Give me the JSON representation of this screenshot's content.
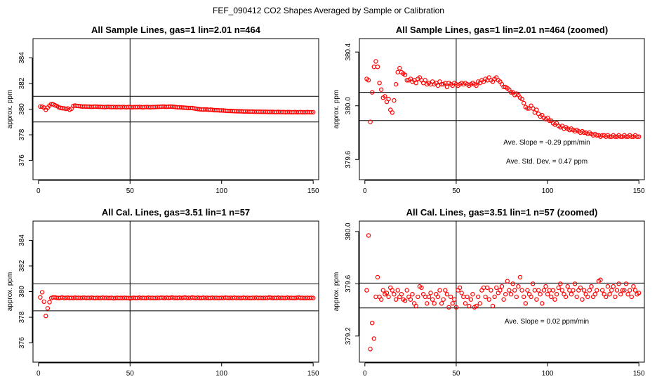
{
  "suptitle": "FEF_090412  CO2 Shapes Averaged by Sample or Calibration",
  "chart_data": [
    {
      "type": "scatter",
      "title": "All Sample Lines, gas=1 lin=2.01 n=464",
      "xlabel": "",
      "ylabel": "approx. ppm",
      "xlim": [
        -3,
        153
      ],
      "ylim": [
        374.5,
        385.5
      ],
      "xticks": [
        0,
        50,
        100,
        150
      ],
      "yticks": [
        376,
        378,
        380,
        382,
        384
      ],
      "vline": 50,
      "hlines": [
        379.0,
        381.0
      ],
      "annotations": [],
      "x": [
        1,
        2,
        3,
        4,
        5,
        6,
        7,
        8,
        9,
        10,
        11,
        12,
        13,
        14,
        15,
        16,
        17,
        18,
        19,
        20,
        21,
        22,
        23,
        24,
        25,
        26,
        27,
        28,
        29,
        30,
        31,
        32,
        33,
        34,
        35,
        36,
        37,
        38,
        39,
        40,
        41,
        42,
        43,
        44,
        45,
        46,
        47,
        48,
        49,
        50,
        51,
        52,
        53,
        54,
        55,
        56,
        57,
        58,
        59,
        60,
        61,
        62,
        63,
        64,
        65,
        66,
        67,
        68,
        69,
        70,
        71,
        72,
        73,
        74,
        75,
        76,
        77,
        78,
        79,
        80,
        81,
        82,
        83,
        84,
        85,
        86,
        87,
        88,
        89,
        90,
        91,
        92,
        93,
        94,
        95,
        96,
        97,
        98,
        99,
        100,
        101,
        102,
        103,
        104,
        105,
        106,
        107,
        108,
        109,
        110,
        111,
        112,
        113,
        114,
        115,
        116,
        117,
        118,
        119,
        120,
        121,
        122,
        123,
        124,
        125,
        126,
        127,
        128,
        129,
        130,
        131,
        132,
        133,
        134,
        135,
        136,
        137,
        138,
        139,
        140,
        141,
        142,
        143,
        144,
        145,
        146,
        147,
        148,
        149,
        150
      ],
      "y": [
        380.2,
        380.19,
        380.12,
        379.95,
        380.12,
        380.28,
        380.4,
        380.38,
        380.3,
        380.25,
        380.15,
        380.1,
        380.07,
        380.06,
        380.02,
        380.05,
        379.95,
        380.03,
        380.25,
        380.28,
        380.25,
        380.24,
        380.22,
        380.2,
        380.21,
        380.2,
        380.2,
        380.19,
        380.18,
        380.19,
        380.2,
        380.19,
        380.18,
        380.18,
        380.17,
        380.16,
        380.17,
        380.18,
        380.17,
        380.16,
        380.17,
        380.16,
        380.16,
        380.17,
        380.15,
        380.17,
        380.16,
        380.15,
        380.17,
        380.16,
        380.15,
        380.16,
        380.16,
        380.16,
        380.17,
        380.16,
        380.15,
        380.16,
        380.17,
        380.16,
        380.15,
        380.16,
        380.16,
        380.17,
        380.18,
        380.18,
        380.19,
        380.2,
        380.19,
        380.18,
        380.19,
        380.2,
        380.19,
        380.18,
        380.16,
        380.14,
        380.14,
        380.13,
        380.12,
        380.11,
        380.1,
        380.09,
        380.09,
        380.08,
        380.06,
        380.04,
        380.01,
        379.99,
        379.98,
        379.97,
        379.98,
        379.97,
        379.95,
        379.96,
        379.94,
        379.92,
        379.92,
        379.91,
        379.9,
        379.9,
        379.89,
        379.88,
        379.87,
        379.86,
        379.86,
        379.85,
        379.84,
        379.84,
        379.83,
        379.83,
        379.83,
        379.82,
        379.82,
        379.82,
        379.81,
        379.81,
        379.81,
        379.8,
        379.8,
        379.8,
        379.8,
        379.79,
        379.79,
        379.79,
        379.78,
        379.78,
        379.78,
        379.78,
        379.77,
        379.77,
        379.78,
        379.77,
        379.77,
        379.77,
        379.76,
        379.77,
        379.77,
        379.76,
        379.76,
        379.77,
        379.76,
        379.76,
        379.77,
        379.76,
        379.76,
        379.76,
        379.77,
        379.76,
        379.76,
        379.76
      ]
    },
    {
      "type": "scatter",
      "title": "All Sample Lines, gas=1 lin=2.01 n=464 (zoomed)",
      "xlabel": "",
      "ylabel": "approx. ppm",
      "xlim": [
        -3,
        153
      ],
      "ylim": [
        379.45,
        380.5
      ],
      "xticks": [
        0,
        50,
        100,
        150
      ],
      "yticks": [
        379.6,
        380.0,
        380.4
      ],
      "ytick_labels": [
        "379.6",
        "380.0",
        "380.4"
      ],
      "vline": 50,
      "hlines": [
        380.1,
        379.89
      ],
      "annotations": [
        "Ave. Slope =  -0.29  ppm/min",
        "Ave. Std. Dev. =  0.47  ppm"
      ],
      "x": [
        1,
        2,
        3,
        4,
        5,
        6,
        7,
        8,
        9,
        10,
        11,
        12,
        13,
        14,
        15,
        16,
        17,
        18,
        19,
        20,
        21,
        22,
        23,
        24,
        25,
        26,
        27,
        28,
        29,
        30,
        31,
        32,
        33,
        34,
        35,
        36,
        37,
        38,
        39,
        40,
        41,
        42,
        43,
        44,
        45,
        46,
        47,
        48,
        49,
        50,
        51,
        52,
        53,
        54,
        55,
        56,
        57,
        58,
        59,
        60,
        61,
        62,
        63,
        64,
        65,
        66,
        67,
        68,
        69,
        70,
        71,
        72,
        73,
        74,
        75,
        76,
        77,
        78,
        79,
        80,
        81,
        82,
        83,
        84,
        85,
        86,
        87,
        88,
        89,
        90,
        91,
        92,
        93,
        94,
        95,
        96,
        97,
        98,
        99,
        100,
        101,
        102,
        103,
        104,
        105,
        106,
        107,
        108,
        109,
        110,
        111,
        112,
        113,
        114,
        115,
        116,
        117,
        118,
        119,
        120,
        121,
        122,
        123,
        124,
        125,
        126,
        127,
        128,
        129,
        130,
        131,
        132,
        133,
        134,
        135,
        136,
        137,
        138,
        139,
        140,
        141,
        142,
        143,
        144,
        145,
        146,
        147,
        148,
        149,
        150
      ],
      "y": [
        380.2,
        380.19,
        379.88,
        380.1,
        380.29,
        380.33,
        380.29,
        380.17,
        380.12,
        380.06,
        380.07,
        380.03,
        380.05,
        379.97,
        379.95,
        380.04,
        380.16,
        380.25,
        380.28,
        380.25,
        380.24,
        380.23,
        380.19,
        380.19,
        380.2,
        380.18,
        380.19,
        380.17,
        380.2,
        380.21,
        380.19,
        380.17,
        380.19,
        380.16,
        380.17,
        380.16,
        380.18,
        380.16,
        380.17,
        380.15,
        380.18,
        380.16,
        380.16,
        380.17,
        380.14,
        380.17,
        380.16,
        380.15,
        380.17,
        380.16,
        380.15,
        380.16,
        380.17,
        380.16,
        380.17,
        380.16,
        380.15,
        380.16,
        380.17,
        380.16,
        380.15,
        380.18,
        380.17,
        380.19,
        380.18,
        380.2,
        380.19,
        380.21,
        380.19,
        380.18,
        380.2,
        380.21,
        380.19,
        380.18,
        380.16,
        380.14,
        380.14,
        380.13,
        380.12,
        380.1,
        380.1,
        380.08,
        380.09,
        380.08,
        380.06,
        380.05,
        380.02,
        379.99,
        379.98,
        379.98,
        380.0,
        379.98,
        379.95,
        379.97,
        379.94,
        379.92,
        379.93,
        379.91,
        379.9,
        379.91,
        379.89,
        379.89,
        379.87,
        379.86,
        379.87,
        379.85,
        379.84,
        379.85,
        379.83,
        379.84,
        379.83,
        379.82,
        379.83,
        379.82,
        379.81,
        379.82,
        379.81,
        379.8,
        379.81,
        379.8,
        379.8,
        379.79,
        379.8,
        379.79,
        379.78,
        379.79,
        379.78,
        379.78,
        379.77,
        379.78,
        379.78,
        379.77,
        379.78,
        379.77,
        379.77,
        379.78,
        379.77,
        379.77,
        379.78,
        379.77,
        379.77,
        379.78,
        379.77,
        379.77,
        379.78,
        379.77,
        379.77,
        379.78,
        379.77,
        379.77
      ]
    },
    {
      "type": "scatter",
      "title": "All Cal. Lines, gas=3.51 lin=1 n=57",
      "xlabel": "",
      "ylabel": "approx. ppm",
      "xlim": [
        -3,
        153
      ],
      "ylim": [
        374.5,
        385.5
      ],
      "xticks": [
        0,
        50,
        100,
        150
      ],
      "yticks": [
        376,
        378,
        380,
        382,
        384
      ],
      "vline": 50,
      "hlines": [
        380.6,
        378.5
      ],
      "annotations": [],
      "x": [
        1,
        2,
        3,
        4,
        5,
        6,
        7,
        8,
        9,
        10,
        11,
        12,
        13,
        14,
        15,
        16,
        17,
        18,
        19,
        20,
        21,
        22,
        23,
        24,
        25,
        26,
        27,
        28,
        29,
        30,
        31,
        32,
        33,
        34,
        35,
        36,
        37,
        38,
        39,
        40,
        41,
        42,
        43,
        44,
        45,
        46,
        47,
        48,
        49,
        50,
        51,
        52,
        53,
        54,
        55,
        56,
        57,
        58,
        59,
        60,
        61,
        62,
        63,
        64,
        65,
        66,
        67,
        68,
        69,
        70,
        71,
        72,
        73,
        74,
        75,
        76,
        77,
        78,
        79,
        80,
        81,
        82,
        83,
        84,
        85,
        86,
        87,
        88,
        89,
        90,
        91,
        92,
        93,
        94,
        95,
        96,
        97,
        98,
        99,
        100,
        101,
        102,
        103,
        104,
        105,
        106,
        107,
        108,
        109,
        110,
        111,
        112,
        113,
        114,
        115,
        116,
        117,
        118,
        119,
        120,
        121,
        122,
        123,
        124,
        125,
        126,
        127,
        128,
        129,
        130,
        131,
        132,
        133,
        134,
        135,
        136,
        137,
        138,
        139,
        140,
        141,
        142,
        143,
        144,
        145,
        146,
        147,
        148,
        149,
        150
      ],
      "y": [
        379.55,
        379.95,
        379.22,
        378.1,
        378.7,
        379.18,
        379.5,
        379.55,
        379.55,
        379.52,
        379.5,
        379.52,
        379.55,
        379.5,
        379.52,
        379.53,
        379.5,
        379.52,
        379.5,
        379.53,
        379.51,
        379.52,
        379.5,
        379.52,
        379.53,
        379.5,
        379.52,
        379.5,
        379.53,
        379.51,
        379.5,
        379.52,
        379.5,
        379.5,
        379.53,
        379.5,
        379.52,
        379.5,
        379.5,
        379.52,
        379.48,
        379.5,
        379.52,
        379.5,
        379.51,
        379.5,
        379.52,
        379.5,
        379.5,
        379.47,
        379.5,
        379.52,
        379.5,
        379.5,
        379.53,
        379.5,
        379.52,
        379.5,
        379.5,
        379.53,
        379.5,
        379.52,
        379.5,
        379.5,
        379.52,
        379.5,
        379.53,
        379.52,
        379.5,
        379.53,
        379.5,
        379.52,
        379.55,
        379.5,
        379.52,
        379.5,
        379.53,
        379.5,
        379.52,
        379.55,
        379.5,
        379.52,
        379.5,
        379.55,
        379.52,
        379.5,
        379.53,
        379.5,
        379.5,
        379.53,
        379.5,
        379.52,
        379.5,
        379.5,
        379.53,
        379.5,
        379.52,
        379.5,
        379.5,
        379.52,
        379.5,
        379.53,
        379.52,
        379.5,
        379.52,
        379.5,
        379.53,
        379.5,
        379.52,
        379.5,
        379.5,
        379.53,
        379.5,
        379.52,
        379.5,
        379.5,
        379.52,
        379.5,
        379.53,
        379.5,
        379.52,
        379.5,
        379.5,
        379.52,
        379.5,
        379.55,
        379.52,
        379.5,
        379.52,
        379.5,
        379.53,
        379.5,
        379.52,
        379.5,
        379.5,
        379.53,
        379.5,
        379.52,
        379.5,
        379.5,
        379.52,
        379.55,
        379.5,
        379.52,
        379.5,
        379.5,
        379.52,
        379.5,
        379.52,
        379.5
      ]
    },
    {
      "type": "scatter",
      "title": "All Cal. Lines, gas=3.51 lin=1 n=57 (zoomed)",
      "xlabel": "",
      "ylabel": "approx. ppm",
      "xlim": [
        -3,
        153
      ],
      "ylim": [
        379.0,
        380.08
      ],
      "xticks": [
        0,
        50,
        100,
        150
      ],
      "yticks": [
        379.2,
        379.6,
        380.0
      ],
      "ytick_labels": [
        "379.2",
        "379.6",
        "380.0"
      ],
      "vline": 50,
      "hlines": [
        379.605,
        379.415
      ],
      "annotations": [
        "Ave. Slope =  0.02  ppm/min"
      ],
      "x": [
        1,
        2,
        3,
        4,
        5,
        6,
        7,
        8,
        9,
        10,
        11,
        12,
        13,
        14,
        15,
        16,
        17,
        18,
        19,
        20,
        21,
        22,
        23,
        24,
        25,
        26,
        27,
        28,
        29,
        30,
        31,
        32,
        33,
        34,
        35,
        36,
        37,
        38,
        39,
        40,
        41,
        42,
        43,
        44,
        45,
        46,
        47,
        48,
        49,
        50,
        51,
        52,
        53,
        54,
        55,
        56,
        57,
        58,
        59,
        60,
        61,
        62,
        63,
        64,
        65,
        66,
        67,
        68,
        69,
        70,
        71,
        72,
        73,
        74,
        75,
        76,
        77,
        78,
        79,
        80,
        81,
        82,
        83,
        84,
        85,
        86,
        87,
        88,
        89,
        90,
        91,
        92,
        93,
        94,
        95,
        96,
        97,
        98,
        99,
        100,
        101,
        102,
        103,
        104,
        105,
        106,
        107,
        108,
        109,
        110,
        111,
        112,
        113,
        114,
        115,
        116,
        117,
        118,
        119,
        120,
        121,
        122,
        123,
        124,
        125,
        126,
        127,
        128,
        129,
        130,
        131,
        132,
        133,
        134,
        135,
        136,
        137,
        138,
        139,
        140,
        141,
        142,
        143,
        144,
        145,
        146,
        147,
        148,
        149,
        150
      ],
      "y": [
        379.55,
        379.97,
        379.1,
        379.3,
        379.18,
        379.5,
        379.65,
        379.5,
        379.48,
        379.55,
        379.52,
        379.53,
        379.5,
        379.57,
        379.55,
        379.52,
        379.48,
        379.55,
        379.5,
        379.52,
        379.48,
        379.47,
        379.55,
        379.5,
        379.48,
        379.52,
        379.45,
        379.43,
        379.5,
        379.58,
        379.57,
        379.52,
        379.5,
        379.45,
        379.5,
        379.53,
        379.48,
        379.45,
        379.52,
        379.5,
        379.55,
        379.45,
        379.48,
        379.55,
        379.52,
        379.42,
        379.5,
        379.45,
        379.48,
        379.42,
        379.55,
        379.57,
        379.53,
        379.5,
        379.45,
        379.5,
        379.43,
        379.48,
        379.52,
        379.42,
        379.43,
        379.5,
        379.45,
        379.55,
        379.57,
        379.5,
        379.57,
        379.48,
        379.55,
        379.43,
        379.5,
        379.57,
        379.53,
        379.55,
        379.58,
        379.48,
        379.52,
        379.62,
        379.55,
        379.52,
        379.6,
        379.55,
        379.5,
        379.58,
        379.65,
        379.55,
        379.5,
        379.45,
        379.55,
        379.52,
        379.5,
        379.6,
        379.55,
        379.48,
        379.55,
        379.52,
        379.45,
        379.55,
        379.58,
        379.52,
        379.55,
        379.5,
        379.55,
        379.48,
        379.52,
        379.57,
        379.6,
        379.55,
        379.52,
        379.5,
        379.58,
        379.55,
        379.52,
        379.55,
        379.6,
        379.5,
        379.55,
        379.57,
        379.48,
        379.55,
        379.52,
        379.5,
        379.55,
        379.58,
        379.5,
        379.52,
        379.55,
        379.62,
        379.63,
        379.55,
        379.52,
        379.5,
        379.58,
        379.52,
        379.55,
        379.58,
        379.5,
        379.55,
        379.6,
        379.52,
        379.55,
        379.55,
        379.6,
        379.52,
        379.55,
        379.5,
        379.58,
        379.55,
        379.52,
        379.53
      ]
    }
  ]
}
